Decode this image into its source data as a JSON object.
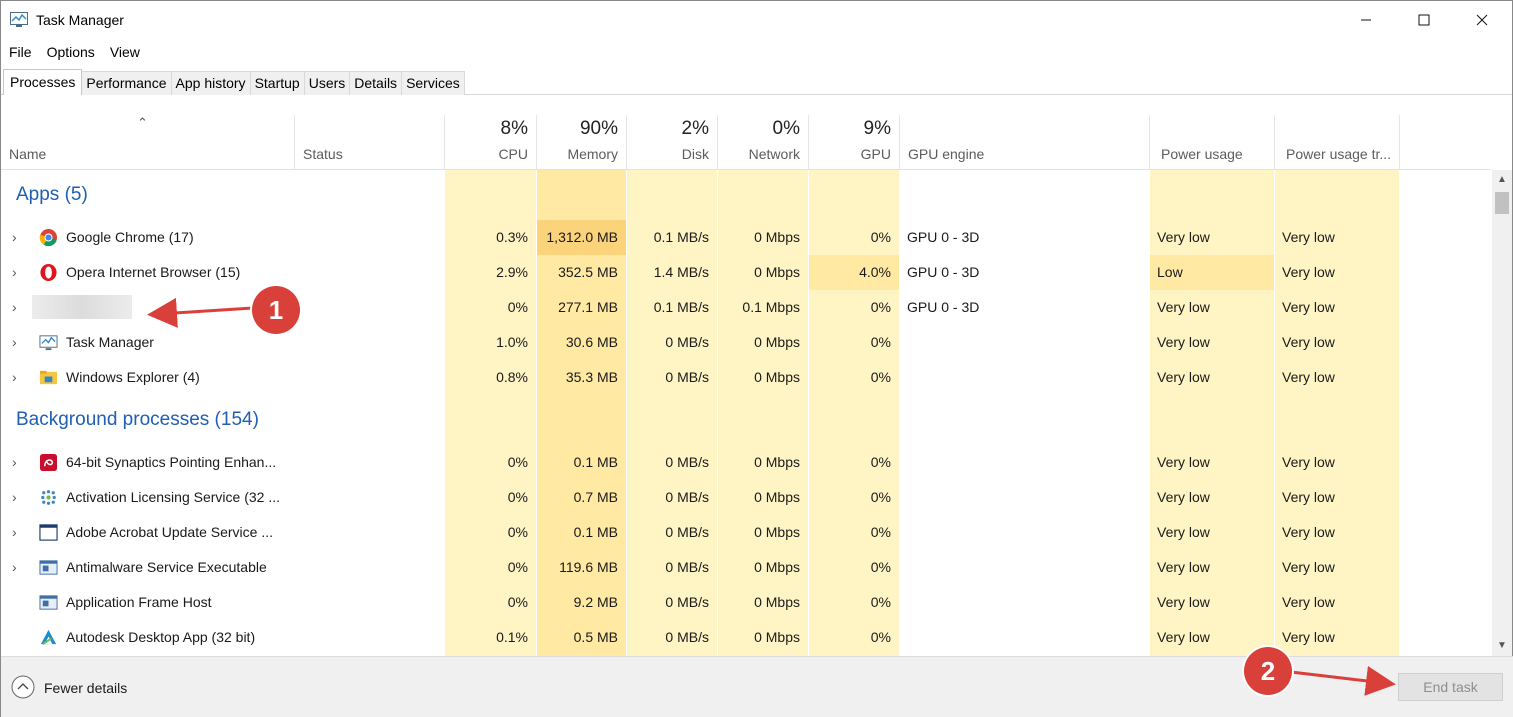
{
  "window": {
    "title": "Task Manager"
  },
  "menu": [
    "File",
    "Options",
    "View"
  ],
  "tabs": [
    "Processes",
    "Performance",
    "App history",
    "Startup",
    "Users",
    "Details",
    "Services"
  ],
  "columns": {
    "name": "Name",
    "status": "Status",
    "cpu": {
      "pct": "8%",
      "label": "CPU"
    },
    "memory": {
      "pct": "90%",
      "label": "Memory"
    },
    "disk": {
      "pct": "2%",
      "label": "Disk"
    },
    "network": {
      "pct": "0%",
      "label": "Network"
    },
    "gpu": {
      "pct": "9%",
      "label": "GPU"
    },
    "gpu_engine": "GPU engine",
    "power": "Power usage",
    "power_trend": "Power usage tr..."
  },
  "groups": {
    "apps": "Apps (5)",
    "background": "Background processes (154)"
  },
  "apps": [
    {
      "name": "Google Chrome (17)",
      "icon": "chrome-icon",
      "cpu": "0.3%",
      "memory": "1,312.0 MB",
      "disk": "0.1 MB/s",
      "network": "0 Mbps",
      "gpu": "0%",
      "gpu_engine": "GPU 0 - 3D",
      "power": "Very low",
      "trend": "Very low"
    },
    {
      "name": "Opera Internet Browser (15)",
      "icon": "opera-icon",
      "cpu": "2.9%",
      "memory": "352.5 MB",
      "disk": "1.4 MB/s",
      "network": "0 Mbps",
      "gpu": "4.0%",
      "gpu_engine": "GPU 0 - 3D",
      "power": "Low",
      "trend": "Very low"
    },
    {
      "name": "",
      "icon": "blurred-icon",
      "cpu": "0%",
      "memory": "277.1 MB",
      "disk": "0.1 MB/s",
      "network": "0.1 Mbps",
      "gpu": "0%",
      "gpu_engine": "GPU 0 - 3D",
      "power": "Very low",
      "trend": "Very low"
    },
    {
      "name": "Task Manager",
      "icon": "task-manager-icon",
      "cpu": "1.0%",
      "memory": "30.6 MB",
      "disk": "0 MB/s",
      "network": "0 Mbps",
      "gpu": "0%",
      "gpu_engine": "",
      "power": "Very low",
      "trend": "Very low"
    },
    {
      "name": "Windows Explorer (4)",
      "icon": "folder-icon",
      "cpu": "0.8%",
      "memory": "35.3 MB",
      "disk": "0 MB/s",
      "network": "0 Mbps",
      "gpu": "0%",
      "gpu_engine": "",
      "power": "Very low",
      "trend": "Very low"
    }
  ],
  "background": [
    {
      "name": "64-bit Synaptics Pointing Enhan...",
      "icon": "synaptics-icon",
      "cpu": "0%",
      "memory": "0.1 MB",
      "disk": "0 MB/s",
      "network": "0 Mbps",
      "gpu": "0%",
      "gpu_engine": "",
      "power": "Very low",
      "trend": "Very low"
    },
    {
      "name": "Activation Licensing Service (32 ...",
      "icon": "licensing-icon",
      "cpu": "0%",
      "memory": "0.7 MB",
      "disk": "0 MB/s",
      "network": "0 Mbps",
      "gpu": "0%",
      "gpu_engine": "",
      "power": "Very low",
      "trend": "Very low"
    },
    {
      "name": "Adobe Acrobat Update Service ...",
      "icon": "window-icon",
      "cpu": "0%",
      "memory": "0.1 MB",
      "disk": "0 MB/s",
      "network": "0 Mbps",
      "gpu": "0%",
      "gpu_engine": "",
      "power": "Very low",
      "trend": "Very low"
    },
    {
      "name": "Antimalware Service Executable",
      "icon": "service-icon",
      "cpu": "0%",
      "memory": "119.6 MB",
      "disk": "0 MB/s",
      "network": "0 Mbps",
      "gpu": "0%",
      "gpu_engine": "",
      "power": "Very low",
      "trend": "Very low"
    },
    {
      "name": "Application Frame Host",
      "icon": "service-icon",
      "cpu": "0%",
      "memory": "9.2 MB",
      "disk": "0 MB/s",
      "network": "0 Mbps",
      "gpu": "0%",
      "gpu_engine": "",
      "power": "Very low",
      "trend": "Very low"
    },
    {
      "name": "Autodesk Desktop App (32 bit)",
      "icon": "autodesk-icon",
      "cpu": "0.1%",
      "memory": "0.5 MB",
      "disk": "0 MB/s",
      "network": "0 Mbps",
      "gpu": "0%",
      "gpu_engine": "",
      "power": "Very low",
      "trend": "Very low"
    }
  ],
  "footer": {
    "fewer_details": "Fewer details",
    "end_task": "End task"
  },
  "annotations": {
    "one": "1",
    "two": "2"
  },
  "colors": {
    "accent": "#1f5fb5",
    "heat_light": "#fff4c4",
    "heat_mid": "#ffe9a3",
    "heat_high": "#fbd37a",
    "marker": "#d9403a"
  }
}
